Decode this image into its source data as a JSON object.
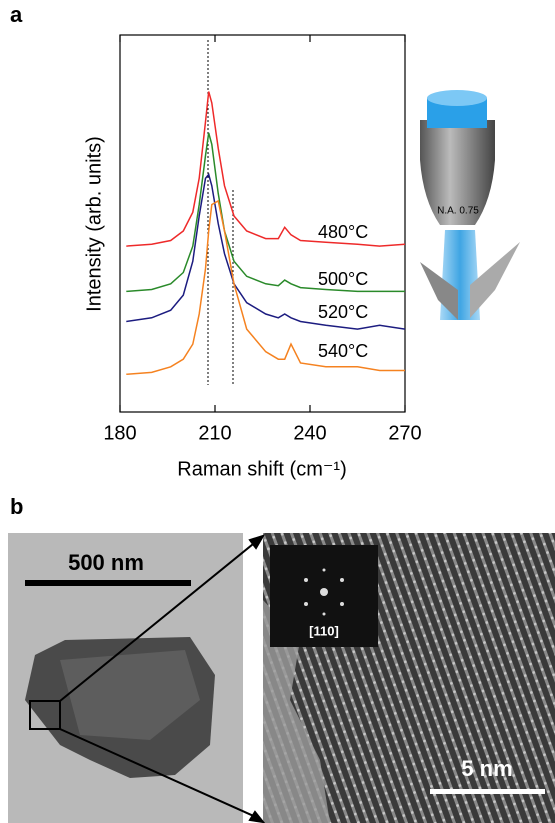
{
  "panel_labels": [
    "a",
    "b"
  ],
  "chart_data": {
    "type": "line",
    "xlabel": "Raman shift (cm⁻¹)",
    "ylabel": "Intensity (arb. units)",
    "x": [
      182,
      190,
      196,
      200,
      203,
      205,
      207,
      208,
      209,
      211,
      213,
      216,
      220,
      226,
      230,
      232,
      234,
      237,
      245,
      255,
      262,
      270
    ],
    "xlim": [
      180,
      270
    ],
    "xticks": [
      180,
      210,
      240,
      270
    ],
    "ylim": [
      0,
      100
    ],
    "series": [
      {
        "name": "480°C",
        "color": "#ee2a2a",
        "values": [
          44,
          44.5,
          45.5,
          48,
          53,
          62,
          77,
          85,
          82,
          70,
          60,
          52,
          48,
          46,
          46,
          49,
          47,
          45.5,
          45,
          44.5,
          44,
          44.5
        ]
      },
      {
        "name": "500°C",
        "color": "#2a8a2a",
        "values": [
          32,
          32.5,
          34,
          37,
          44,
          55,
          68,
          74,
          71,
          58,
          48,
          40,
          36,
          34,
          33.5,
          35,
          34,
          33,
          32.5,
          32,
          32,
          32
        ]
      },
      {
        "name": "520°C",
        "color": "#1c1c80",
        "values": [
          24,
          25,
          27,
          31,
          40,
          52,
          62,
          63,
          60,
          50,
          42,
          34,
          29,
          26,
          25,
          26,
          25,
          24,
          23,
          22,
          23,
          22
        ]
      },
      {
        "name": "540°C",
        "color": "#f58220",
        "values": [
          10,
          10.5,
          12,
          14,
          18,
          26,
          38,
          48,
          55,
          56,
          48,
          34,
          22,
          16,
          14,
          14,
          18,
          13,
          12,
          12,
          11,
          11
        ]
      }
    ]
  },
  "objective_label": "N.A. 0.75",
  "tem": {
    "scale_bar_left": "500 nm",
    "fft_label": "[110]",
    "scale_bar_right": "5 nm"
  }
}
